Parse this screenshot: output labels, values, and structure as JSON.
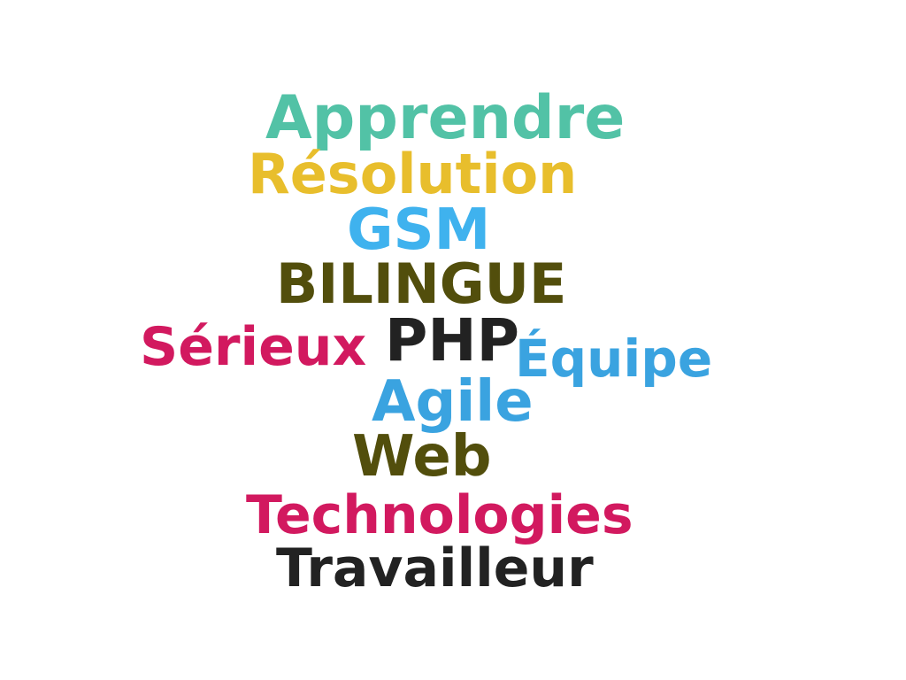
{
  "words": [
    {
      "text": "Apprendre",
      "color": "#52c2a6"
    },
    {
      "text": "Résolution",
      "color": "#e8be2c"
    },
    {
      "text": "GSM",
      "color": "#3fb2ee"
    },
    {
      "text": "BILINGUE",
      "color": "#524e0c"
    },
    {
      "text": "Sérieux",
      "color": "#d2195f"
    },
    {
      "text": "PHP",
      "color": "#222222"
    },
    {
      "text": "Équipe",
      "color": "#3aa3e0"
    },
    {
      "text": "Agile",
      "color": "#3aa3e0"
    },
    {
      "text": "Web",
      "color": "#524e0c"
    },
    {
      "text": "Technologies",
      "color": "#d2195f"
    },
    {
      "text": "Travailleur",
      "color": "#222222"
    }
  ]
}
